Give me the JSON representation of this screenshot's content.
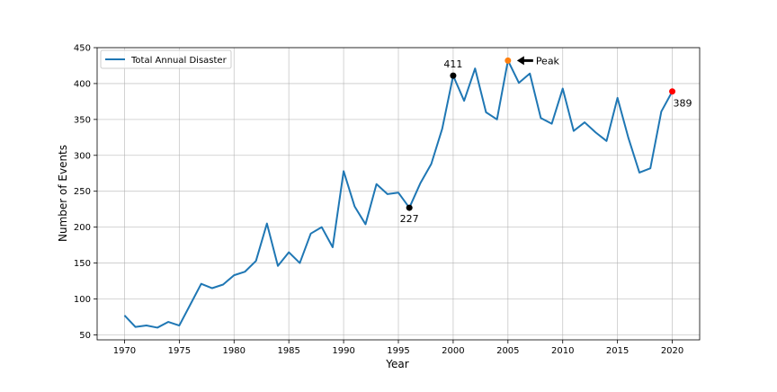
{
  "chart_data": {
    "type": "line",
    "title": "",
    "xlabel": "Year",
    "ylabel": "Number of Events",
    "xlim": [
      1967.5,
      2022.5
    ],
    "ylim": [
      43,
      450
    ],
    "xticks": [
      1970,
      1975,
      1980,
      1985,
      1990,
      1995,
      2000,
      2005,
      2010,
      2015,
      2020
    ],
    "yticks": [
      50,
      100,
      150,
      200,
      250,
      300,
      350,
      400,
      450
    ],
    "grid": true,
    "legend_position": "top-left",
    "series": [
      {
        "name": "Total Annual Disaster",
        "color": "#1f77b4",
        "x": [
          1970,
          1971,
          1972,
          1973,
          1974,
          1975,
          1976,
          1977,
          1978,
          1979,
          1980,
          1981,
          1982,
          1983,
          1984,
          1985,
          1986,
          1987,
          1988,
          1989,
          1990,
          1991,
          1992,
          1993,
          1994,
          1995,
          1996,
          1997,
          1998,
          1999,
          2000,
          2001,
          2002,
          2003,
          2004,
          2005,
          2006,
          2007,
          2008,
          2009,
          2010,
          2011,
          2012,
          2013,
          2014,
          2015,
          2016,
          2017,
          2018,
          2019,
          2020
        ],
        "values": [
          77,
          61,
          63,
          60,
          68,
          63,
          92,
          121,
          115,
          120,
          133,
          138,
          153,
          205,
          146,
          165,
          150,
          191,
          200,
          172,
          278,
          229,
          204,
          260,
          246,
          248,
          227,
          261,
          288,
          337,
          411,
          376,
          421,
          360,
          350,
          432,
          401,
          414,
          352,
          344,
          393,
          334,
          346,
          332,
          320,
          380,
          324,
          276,
          282,
          361,
          389
        ]
      }
    ],
    "annotations": [
      {
        "x": 2000,
        "y": 411,
        "label": "411",
        "marker_color": "#000000"
      },
      {
        "x": 1996,
        "y": 227,
        "label": "227",
        "marker_color": "#000000"
      },
      {
        "x": 2020,
        "y": 389,
        "label": "389",
        "marker_color": "#ff0000"
      },
      {
        "x": 2005,
        "y": 432,
        "label": "Peak",
        "marker_color": "#ff7f0e"
      }
    ]
  }
}
